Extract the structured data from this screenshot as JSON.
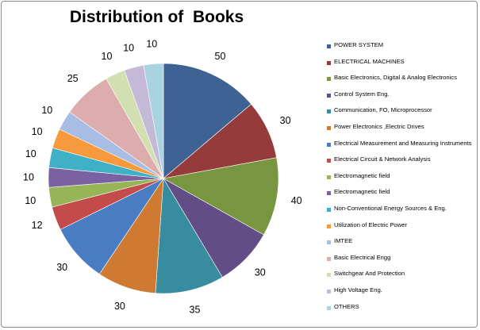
{
  "chart_data": {
    "type": "pie",
    "title": "Distribution of  Books",
    "legend_position": "right",
    "slices": [
      {
        "label": "POWER SYSTEM",
        "value": 50,
        "color": "#3d6293"
      },
      {
        "label": "ELECTRICAL MACHINES",
        "value": 30,
        "color": "#953b3b"
      },
      {
        "label": "Basic Electronics, Digital & Analog Electronics",
        "value": 40,
        "color": "#78963f"
      },
      {
        "label": "Control System Eng.",
        "value": 30,
        "color": "#624d87"
      },
      {
        "label": "Communication, FO, Microprocessor",
        "value": 35,
        "color": "#388c9f"
      },
      {
        "label": "Power Electronics ,Electric Drives",
        "value": 30,
        "color": "#cf7a33"
      },
      {
        "label": "Electrical Measurement and Measuring Instruments",
        "value": 30,
        "color": "#4a7cc1"
      },
      {
        "label": "Electrical Circuit & Network Analysis",
        "value": 12,
        "color": "#c34b4b"
      },
      {
        "label": "Electromagnetic field",
        "value": 10,
        "color": "#95b556"
      },
      {
        "label": "Electromagnetic field",
        "value": 10,
        "color": "#7a61a1"
      },
      {
        "label": "Non-Conventional Energy Sources & Eng.",
        "value": 10,
        "color": "#3fb1c6"
      },
      {
        "label": "Utilization of Electric Power",
        "value": 10,
        "color": "#f79a3d"
      },
      {
        "label": "IMTEE",
        "value": 10,
        "color": "#a7bde3"
      },
      {
        "label": "Basic Electrical Engg",
        "value": 25,
        "color": "#ddadad"
      },
      {
        "label": "Switchgear And Protection",
        "value": 10,
        "color": "#d2dfb2"
      },
      {
        "label": "High Voltage Eng.",
        "value": 10,
        "color": "#c4b9d6"
      },
      {
        "label": "OTHERS",
        "value": 10,
        "color": "#a9d4df"
      }
    ]
  }
}
